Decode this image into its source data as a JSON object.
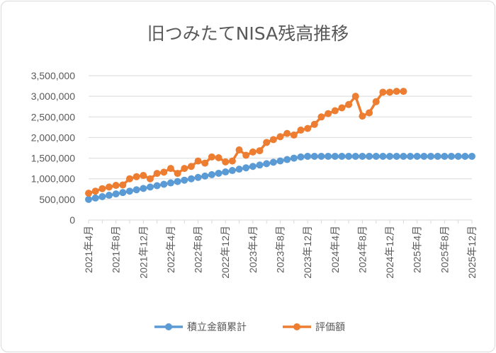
{
  "chart_data": {
    "type": "line",
    "title": "旧つみたてNISA残高推移",
    "ylim": [
      0,
      3500000
    ],
    "y_ticks": [
      "0",
      "500,000",
      "1,000,000",
      "1,500,000",
      "2,000,000",
      "2,500,000",
      "3,000,000",
      "3,500,000"
    ],
    "x_tick_labels": [
      "2021年4月",
      "2021年8月",
      "2021年12月",
      "2022年4月",
      "2022年8月",
      "2022年12月",
      "2023年4月",
      "2023年8月",
      "2023年12月",
      "2024年4月",
      "2024年8月",
      "2024年12月",
      "2025年4月",
      "2025年8月",
      "2025年12月"
    ],
    "legend_position": "bottom",
    "grid": "horizontal",
    "series": [
      {
        "name": "積立金額累計",
        "color": "#5b9bd5",
        "values": [
          500000,
          533000,
          566000,
          600000,
          633000,
          666000,
          700000,
          733000,
          766000,
          800000,
          833000,
          866000,
          900000,
          933000,
          966000,
          1000000,
          1033000,
          1066000,
          1100000,
          1133000,
          1166000,
          1200000,
          1233000,
          1266000,
          1300000,
          1333000,
          1366000,
          1400000,
          1433000,
          1466000,
          1500000,
          1530000,
          1545000,
          1545000,
          1545000,
          1545000,
          1545000,
          1545000,
          1545000,
          1545000,
          1545000,
          1545000,
          1545000,
          1545000,
          1545000,
          1545000,
          1545000,
          1545000,
          1545000,
          1545000,
          1545000,
          1545000,
          1545000,
          1545000,
          1545000,
          1545000,
          1545000
        ]
      },
      {
        "name": "評価額",
        "color": "#ed7d31",
        "values": [
          650000,
          700000,
          760000,
          800000,
          840000,
          850000,
          1000000,
          1050000,
          1080000,
          1000000,
          1130000,
          1160000,
          1250000,
          1130000,
          1250000,
          1300000,
          1430000,
          1380000,
          1530000,
          1510000,
          1410000,
          1430000,
          1700000,
          1570000,
          1650000,
          1680000,
          1880000,
          1950000,
          2020000,
          2100000,
          2060000,
          2180000,
          2220000,
          2320000,
          2500000,
          2580000,
          2650000,
          2720000,
          2800000,
          3000000,
          2520000,
          2600000,
          2870000,
          3100000,
          3100000,
          3120000,
          3120000
        ]
      }
    ]
  }
}
